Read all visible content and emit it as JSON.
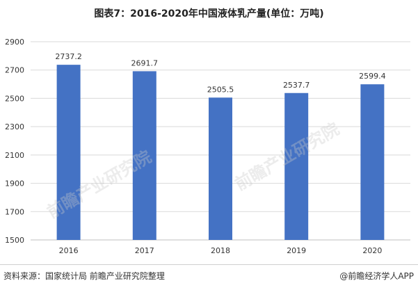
{
  "chart_data": {
    "type": "bar",
    "title": "图表7：2016-2020年中国液体乳产量(单位：万吨)",
    "categories": [
      "2016",
      "2017",
      "2018",
      "2019",
      "2020"
    ],
    "values": [
      2737.2,
      2691.7,
      2505.5,
      2537.7,
      2599.4
    ],
    "data_labels": [
      "2737.2",
      "2691.7",
      "2505.5",
      "2537.7",
      "2599.4"
    ],
    "ylim": [
      1500,
      2900
    ],
    "y_ticks": [
      "1500",
      "1700",
      "1900",
      "2100",
      "2300",
      "2500",
      "2700",
      "2900"
    ],
    "xlabel": "",
    "ylabel": "",
    "grid": "horizontal",
    "bar_color": "#4472C4"
  },
  "footer": {
    "source": "资料来源：国家统计局 前瞻产业研究院整理",
    "credit": "@前瞻经济学人APP"
  },
  "watermark": {
    "text": "前瞻产业研究院"
  }
}
